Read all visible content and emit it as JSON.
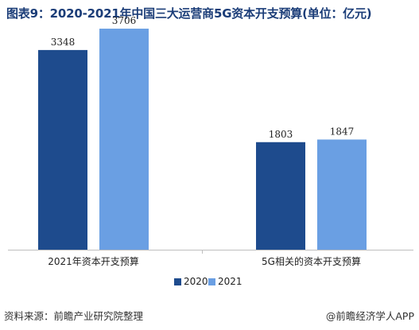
{
  "title": "图表9：2020-2021年中国三大运营商5G资本开支预算(单位：亿元)",
  "source": "资料来源：前瞻产业研究院整理",
  "brand": "@前瞻经济学人APP",
  "colors": {
    "s2020": "#1e4b8d",
    "s2021": "#6a9fe3",
    "axis": "#bfbfbf"
  },
  "chart_data": {
    "type": "bar",
    "categories": [
      "2021年资本开支预算",
      "5G相关的资本开支预算"
    ],
    "series": [
      {
        "name": "2020",
        "values": [
          3348,
          1803
        ]
      },
      {
        "name": "2021",
        "values": [
          3706,
          1847
        ]
      }
    ],
    "ylim": [
      0,
      4000
    ],
    "grid": false,
    "legend_position": "bottom"
  }
}
